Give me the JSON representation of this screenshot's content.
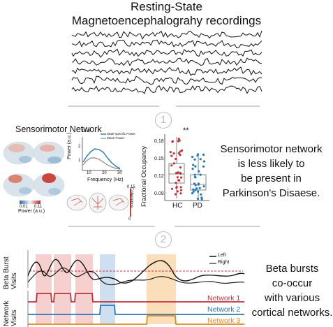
{
  "header": {
    "line1": "Resting-State",
    "line2": "Magnetoencephalograhy recordings"
  },
  "steps": {
    "one": "1",
    "two": "2"
  },
  "panel1": {
    "title": "Sensorimotor Network",
    "colorbar": {
      "min": "0.01",
      "max": "0.11",
      "label": "Power (a.u.)"
    },
    "spectrum": {
      "exponent": "1e-3",
      "ylabel": "Power (a.u.)",
      "xlabel": "Frequency (Hz)",
      "xticks": [
        "10",
        "20",
        "30"
      ],
      "yticks": [
        "1",
        "2"
      ],
      "legend": [
        "State-specific Power",
        "Mean Power"
      ]
    },
    "coherence": {
      "label": "Coherence",
      "max": "0.15",
      "min": "0"
    },
    "boxplot": {
      "ylabel": "Fractional Occupancy",
      "yticks": [
        "0.18",
        "0.15",
        "0.12",
        "0.09"
      ],
      "groups": [
        "HC",
        "PD"
      ],
      "significance": "**"
    },
    "finding": [
      "Sensorimotor network",
      "is less likely to",
      "be present in",
      "Parkinson's Disaese."
    ]
  },
  "panel2": {
    "ylabel_top": [
      "Beta Burst",
      "Visits"
    ],
    "ylabel_bottom": [
      "Network",
      "Visits"
    ],
    "legend": [
      "Left",
      "Right"
    ],
    "networks": [
      {
        "name": "Network 1",
        "color": "#c0333b"
      },
      {
        "name": "Network 2",
        "color": "#2a78b3"
      },
      {
        "name": "Network 3",
        "color": "#e28a1c"
      }
    ],
    "finding": [
      "Beta bursts",
      "co-occur",
      "with various",
      "cortical networks."
    ]
  },
  "colors": {
    "red_shade": "#f4c7c7",
    "blue_shade": "#c9dcef",
    "orange_shade": "#fbdcb4",
    "divider": "#b5b5b5"
  }
}
